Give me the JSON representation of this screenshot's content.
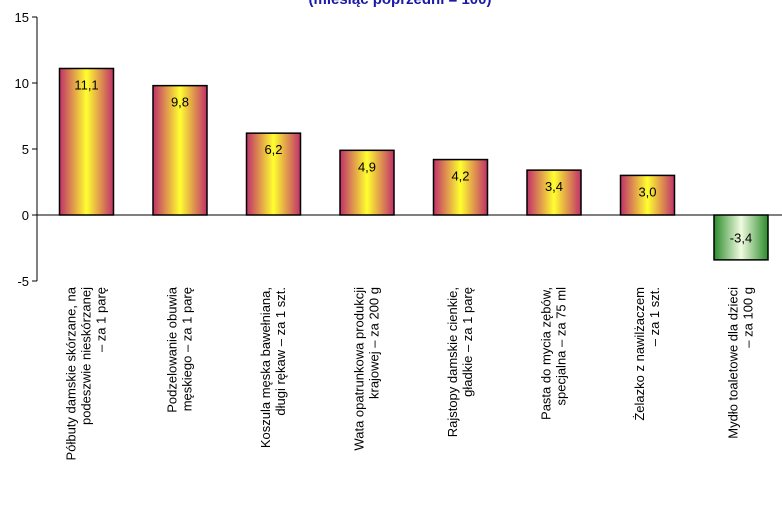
{
  "chart_data": {
    "type": "bar",
    "title": "(miesiąc poprzedni = 100)",
    "ylim": [
      -5,
      15
    ],
    "yticks": [
      "-5",
      "0",
      "5",
      "10",
      "15"
    ],
    "grid": false,
    "legend": "none",
    "categories": [
      [
        "Półbuty damskie skórzane, na",
        "podeszwie nieskórzanej",
        "– za 1 parę"
      ],
      [
        "Podzelowanie obuwia",
        "męskiego – za 1 parę"
      ],
      [
        "Koszula męska bawełniana,",
        "długi rękaw – za 1 szt."
      ],
      [
        "Wata opatrunkowa produkcji",
        "krajowej – za 200 g"
      ],
      [
        "Rajstopy damskie cienkie,",
        "gładkie – za 1 parę"
      ],
      [
        "Pasta do mycia zębów,",
        "specjalna – za 75 ml"
      ],
      [
        "Żelazko z nawilżaczem",
        "– za 1 szt."
      ],
      [
        "Mydło toaletowe dla dzieci",
        "– za 100 g"
      ]
    ],
    "values": [
      11.1,
      9.8,
      6.2,
      4.9,
      4.2,
      3.4,
      3.0,
      -3.4
    ],
    "value_labels": [
      "11,1",
      "9,8",
      "6,2",
      "4,9",
      "4,2",
      "3,4",
      "3,0",
      "-3,4"
    ],
    "colors": {
      "positive_edge": "#c0306a",
      "positive_center": "#ffff30",
      "negative_edge": "#2c8c2c",
      "negative_center": "#f0fbe0"
    }
  }
}
